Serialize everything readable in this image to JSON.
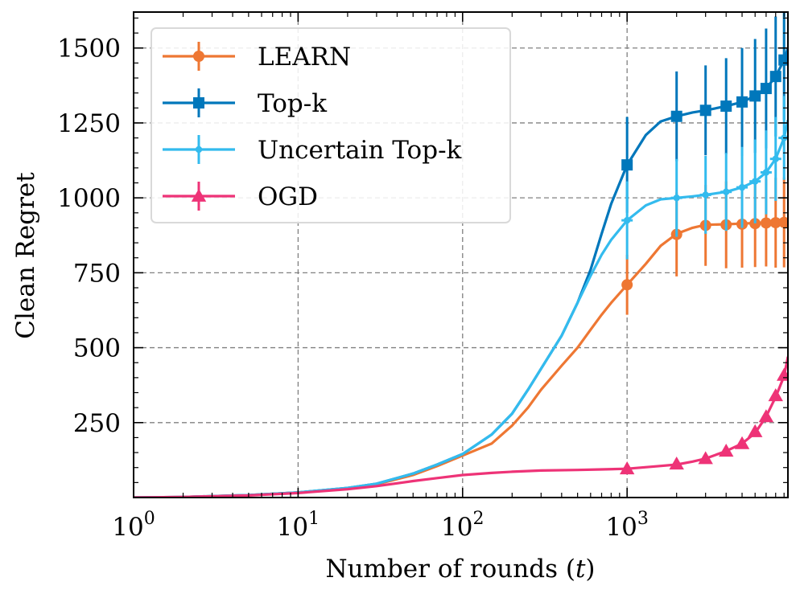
{
  "chart_data": {
    "type": "line",
    "title": "",
    "xlabel": "Number of rounds (t)",
    "xlabel_parts": {
      "prefix": "Number of rounds (",
      "var": "t",
      "suffix": ")"
    },
    "ylabel": "Clean Regret",
    "xscale": "log",
    "xlim": [
      1,
      9500
    ],
    "ylim": [
      0,
      1620
    ],
    "grid": true,
    "legend_position": "top-left",
    "x_ticks": [
      {
        "value": 1,
        "base": "10",
        "exp": "0"
      },
      {
        "value": 10,
        "base": "10",
        "exp": "1"
      },
      {
        "value": 100,
        "base": "10",
        "exp": "2"
      },
      {
        "value": 1000,
        "base": "10",
        "exp": "3"
      }
    ],
    "y_ticks": [
      {
        "value": 250,
        "label": "250"
      },
      {
        "value": 500,
        "label": "500"
      },
      {
        "value": 750,
        "label": "750"
      },
      {
        "value": 1000,
        "label": "1000"
      },
      {
        "value": 1250,
        "label": "1250"
      },
      {
        "value": 1500,
        "label": "1500"
      }
    ],
    "series": [
      {
        "name": "LEARN",
        "color": "#ee7733",
        "marker": "circle",
        "curve_x": [
          1,
          2,
          5,
          10,
          20,
          30,
          50,
          70,
          100,
          150,
          200,
          250,
          300,
          400,
          500,
          600,
          700,
          800,
          1000,
          1300,
          1600,
          2000,
          2500,
          3000,
          4000,
          5000,
          6000,
          7000,
          8000,
          9000,
          9500
        ],
        "curve_y": [
          0,
          2,
          8,
          17,
          31,
          44,
          75,
          105,
          140,
          180,
          240,
          300,
          360,
          440,
          500,
          560,
          610,
          650,
          710,
          780,
          840,
          880,
          900,
          910,
          912,
          914,
          916,
          917,
          918,
          919,
          920
        ],
        "markers": [
          {
            "x": 1000,
            "y": 710,
            "err": 100
          },
          {
            "x": 2000,
            "y": 878,
            "err": 140
          },
          {
            "x": 3000,
            "y": 908,
            "err": 135
          },
          {
            "x": 4000,
            "y": 910,
            "err": 145
          },
          {
            "x": 5000,
            "y": 912,
            "err": 145
          },
          {
            "x": 6000,
            "y": 914,
            "err": 145
          },
          {
            "x": 7000,
            "y": 916,
            "err": 145
          },
          {
            "x": 8000,
            "y": 917,
            "err": 150
          },
          {
            "x": 9000,
            "y": 918,
            "err": 150
          }
        ]
      },
      {
        "name": "Top-k",
        "color": "#0077bb",
        "marker": "square",
        "curve_x": [
          1,
          2,
          5,
          10,
          20,
          30,
          50,
          70,
          100,
          150,
          200,
          250,
          300,
          400,
          500,
          600,
          700,
          800,
          1000,
          1300,
          1600,
          2000,
          2500,
          3000,
          4000,
          5000,
          6000,
          7000,
          8000,
          9000,
          9500
        ],
        "curve_y": [
          0,
          2,
          8,
          17,
          32,
          46,
          80,
          110,
          145,
          210,
          280,
          360,
          430,
          540,
          650,
          760,
          880,
          980,
          1110,
          1210,
          1255,
          1272,
          1285,
          1292,
          1306,
          1320,
          1340,
          1365,
          1405,
          1460,
          1500
        ],
        "markers": [
          {
            "x": 1000,
            "y": 1110,
            "err": 160
          },
          {
            "x": 2000,
            "y": 1272,
            "err": 150
          },
          {
            "x": 3000,
            "y": 1292,
            "err": 150
          },
          {
            "x": 4000,
            "y": 1306,
            "err": 160
          },
          {
            "x": 5000,
            "y": 1320,
            "err": 180
          },
          {
            "x": 6000,
            "y": 1340,
            "err": 190
          },
          {
            "x": 7000,
            "y": 1365,
            "err": 200
          },
          {
            "x": 8000,
            "y": 1405,
            "err": 200
          },
          {
            "x": 9000,
            "y": 1460,
            "err": 200
          }
        ]
      },
      {
        "name": "Uncertain Top-k",
        "color": "#33bbee",
        "marker": "plus",
        "curve_x": [
          1,
          2,
          5,
          10,
          20,
          30,
          50,
          70,
          100,
          150,
          200,
          250,
          300,
          400,
          500,
          600,
          700,
          800,
          1000,
          1300,
          1600,
          2000,
          2500,
          3000,
          4000,
          5000,
          6000,
          7000,
          8000,
          9000,
          9500
        ],
        "curve_y": [
          0,
          2,
          8,
          17,
          32,
          46,
          80,
          110,
          145,
          210,
          280,
          360,
          430,
          540,
          650,
          740,
          810,
          860,
          925,
          975,
          995,
          1000,
          1005,
          1010,
          1020,
          1035,
          1055,
          1085,
          1130,
          1200,
          1260
        ],
        "markers": [
          {
            "x": 1000,
            "y": 925,
            "err": 130
          },
          {
            "x": 2000,
            "y": 1000,
            "err": 130
          },
          {
            "x": 3000,
            "y": 1010,
            "err": 130
          },
          {
            "x": 4000,
            "y": 1020,
            "err": 130
          },
          {
            "x": 5000,
            "y": 1035,
            "err": 135
          },
          {
            "x": 6000,
            "y": 1055,
            "err": 140
          },
          {
            "x": 7000,
            "y": 1085,
            "err": 140
          },
          {
            "x": 8000,
            "y": 1130,
            "err": 140
          },
          {
            "x": 9000,
            "y": 1200,
            "err": 140
          }
        ]
      },
      {
        "name": "OGD",
        "color": "#ee3377",
        "marker": "triangle",
        "curve_x": [
          1,
          2,
          5,
          10,
          20,
          30,
          50,
          70,
          100,
          150,
          200,
          300,
          500,
          700,
          1000,
          1500,
          2000,
          2500,
          3000,
          4000,
          5000,
          6000,
          7000,
          8000,
          9000,
          9500
        ],
        "curve_y": [
          0,
          2,
          7,
          15,
          28,
          38,
          55,
          65,
          75,
          82,
          86,
          90,
          92,
          94,
          96,
          104,
          110,
          120,
          130,
          155,
          180,
          215,
          270,
          335,
          405,
          470
        ],
        "markers": [
          {
            "x": 1000,
            "y": 96,
            "err": 5
          },
          {
            "x": 2000,
            "y": 112,
            "err": 5
          },
          {
            "x": 3000,
            "y": 130,
            "err": 6
          },
          {
            "x": 4000,
            "y": 155,
            "err": 6
          },
          {
            "x": 5000,
            "y": 180,
            "err": 8
          },
          {
            "x": 6000,
            "y": 220,
            "err": 8
          },
          {
            "x": 7000,
            "y": 270,
            "err": 10
          },
          {
            "x": 8000,
            "y": 340,
            "err": 10
          },
          {
            "x": 9000,
            "y": 408,
            "err": 12
          }
        ]
      }
    ]
  }
}
